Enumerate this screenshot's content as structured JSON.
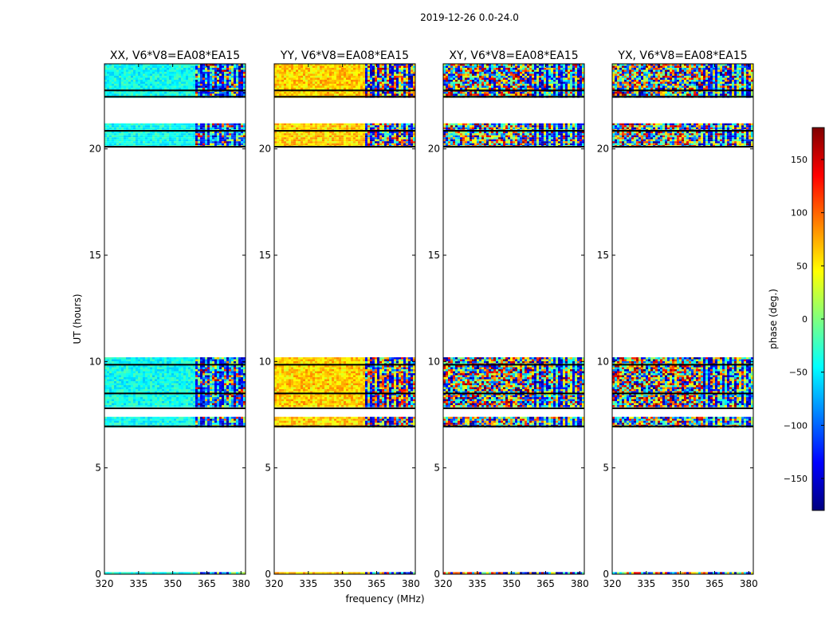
{
  "figure": {
    "suptitle": "2019-12-26 0.0-24.0",
    "xlabel": "frequency (MHz)",
    "ylabel": "UT (hours)",
    "colorbar_label": "phase (deg.)",
    "colorbar_ticks": [
      150,
      100,
      50,
      0,
      -50,
      -100,
      -150
    ],
    "colorbar_range": [
      -180,
      180
    ],
    "colorbar_colors": [
      "#00007f",
      "#0000ff",
      "#0080ff",
      "#00ffff",
      "#7fff7f",
      "#ffff00",
      "#ff8000",
      "#ff0000",
      "#7f0000"
    ]
  },
  "chart_data": [
    {
      "type": "heatmap",
      "title": "XX, V6*V8=EA08*EA15",
      "xlim": [
        320,
        382
      ],
      "ylim": [
        0,
        24
      ],
      "xticks": [
        320,
        335,
        350,
        365,
        380
      ],
      "yticks": [
        0,
        5,
        10,
        15,
        20
      ],
      "mean_phase": -40,
      "spread": 25,
      "fringe_start_mhz": 359,
      "blocks": [
        [
          0,
          0.1
        ],
        [
          6.9,
          7.4
        ],
        [
          7.85,
          10.2
        ],
        [
          20.1,
          21.2
        ],
        [
          22.4,
          24
        ]
      ],
      "black_lines": [
        6.95,
        7.8,
        8.5,
        9.85,
        20.1,
        20.85,
        22.45,
        22.75
      ]
    },
    {
      "type": "heatmap",
      "title": "YY, V6*V8=EA08*EA15",
      "xlim": [
        320,
        382
      ],
      "ylim": [
        0,
        24
      ],
      "xticks": [
        320,
        335,
        350,
        365,
        380
      ],
      "yticks": [
        0,
        5,
        10,
        15,
        20
      ],
      "mean_phase": 60,
      "spread": 30,
      "fringe_start_mhz": 359,
      "blocks": [
        [
          0,
          0.1
        ],
        [
          6.9,
          7.4
        ],
        [
          7.85,
          10.2
        ],
        [
          20.1,
          21.2
        ],
        [
          22.4,
          24
        ]
      ],
      "black_lines": [
        6.95,
        7.8,
        8.5,
        9.85,
        20.1,
        20.85,
        22.45,
        22.75
      ]
    },
    {
      "type": "heatmap",
      "title": "XY, V6*V8=EA08*EA15",
      "xlim": [
        320,
        382
      ],
      "ylim": [
        0,
        24
      ],
      "xticks": [
        320,
        335,
        350,
        365,
        380
      ],
      "yticks": [
        0,
        5,
        10,
        15,
        20
      ],
      "mean_phase": 0,
      "spread": 180,
      "fringe_start_mhz": 359,
      "blocks": [
        [
          0,
          0.1
        ],
        [
          6.9,
          7.4
        ],
        [
          7.85,
          10.2
        ],
        [
          20.1,
          21.2
        ],
        [
          22.4,
          24
        ]
      ],
      "black_lines": [
        6.95,
        7.8,
        8.5,
        9.85,
        20.1,
        20.85,
        22.45,
        22.75
      ]
    },
    {
      "type": "heatmap",
      "title": "YX, V6*V8=EA08*EA15",
      "xlim": [
        320,
        382
      ],
      "ylim": [
        0,
        24
      ],
      "xticks": [
        320,
        335,
        350,
        365,
        380
      ],
      "yticks": [
        0,
        5,
        10,
        15,
        20
      ],
      "mean_phase": 0,
      "spread": 180,
      "fringe_start_mhz": 359,
      "blocks": [
        [
          0,
          0.1
        ],
        [
          6.9,
          7.4
        ],
        [
          7.85,
          10.2
        ],
        [
          20.1,
          21.2
        ],
        [
          22.4,
          24
        ]
      ],
      "black_lines": [
        6.95,
        7.8,
        8.5,
        9.85,
        20.1,
        20.85,
        22.45,
        22.75
      ]
    }
  ]
}
